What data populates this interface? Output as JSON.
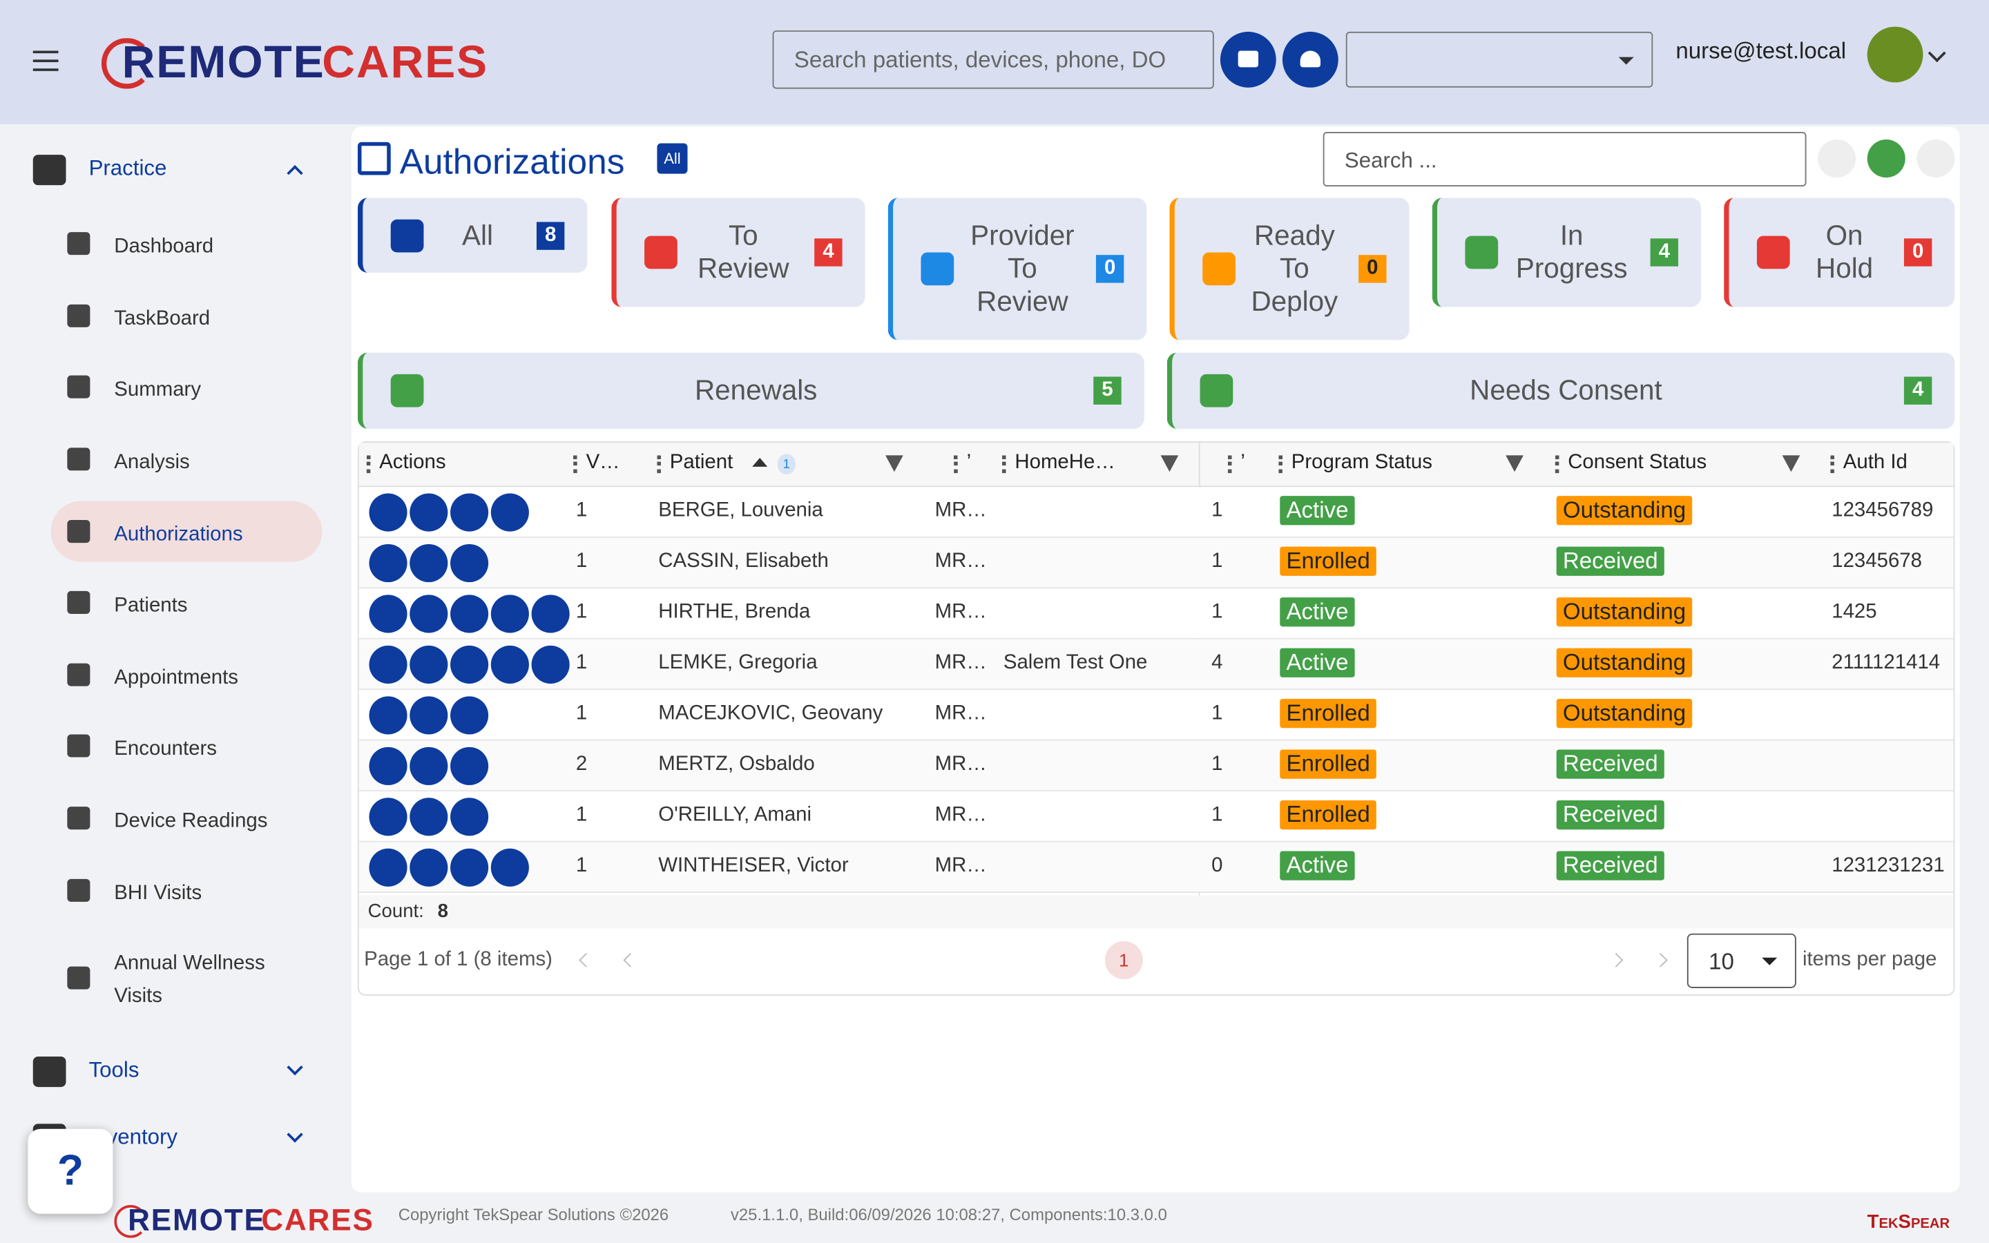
{
  "header": {
    "logo": {
      "left": "REMOTE",
      "right": "CARES"
    },
    "search_placeholder": "Search patients, devices, phone, DO",
    "user": "nurse@test.local"
  },
  "sidebar": {
    "groups": [
      {
        "label": "Practice",
        "items": [
          "Dashboard",
          "TaskBoard",
          "Summary",
          "Analysis",
          "Authorizations",
          "Patients",
          "Appointments",
          "Encounters",
          "Device Readings",
          "BHI Visits",
          "Annual Wellness Visits"
        ]
      },
      {
        "label": "Tools"
      },
      {
        "label": "Inventory"
      }
    ]
  },
  "help": "?",
  "page": {
    "title": "Authorizations",
    "title_badge": "All",
    "search_placeholder": "Search ...",
    "filters": [
      {
        "label": "All",
        "count": 8
      },
      {
        "label": "To Review",
        "count": 4
      },
      {
        "label": "Provider To Review",
        "count": 0
      },
      {
        "label": "Ready To Deploy",
        "count": 0
      },
      {
        "label": "In Progress",
        "count": 4
      },
      {
        "label": "On Hold",
        "count": 0
      }
    ],
    "wide_filters": [
      {
        "label": "Renewals",
        "count": 5
      },
      {
        "label": "Needs Consent",
        "count": 4
      }
    ]
  },
  "table": {
    "columns": [
      "Actions",
      "V…",
      "Patient",
      "’",
      "HomeHe…",
      "’",
      "Program Status",
      "Consent Status",
      "Auth Id"
    ],
    "sort_badge": 1,
    "rows": [
      {
        "v": 1,
        "patient": "BERGE, Louvenia",
        "mr": "MR…",
        "n": 1,
        "program": "Active",
        "consent": "Outstanding",
        "auth_id": "123456789"
      },
      {
        "v": 1,
        "patient": "CASSIN, Elisabeth",
        "mr": "MR…",
        "n": 1,
        "program": "Enrolled",
        "consent": "Received",
        "auth_id": "12345678"
      },
      {
        "v": 1,
        "patient": "HIRTHE, Brenda",
        "mr": "MR…",
        "n": 1,
        "program": "Active",
        "consent": "Outstanding",
        "auth_id": "1425"
      },
      {
        "v": 1,
        "patient": "LEMKE, Gregoria",
        "mr": "MR…",
        "home": "Salem Test One",
        "n": 4,
        "program": "Active",
        "consent": "Outstanding",
        "auth_id": "2111121414"
      },
      {
        "v": 1,
        "patient": "MACEJKOVIC, Geovany",
        "mr": "MR…",
        "n": 1,
        "program": "Enrolled",
        "consent": "Outstanding"
      },
      {
        "v": 2,
        "patient": "MERTZ, Osbaldo",
        "mr": "MR…",
        "n": 1,
        "program": "Enrolled",
        "consent": "Received"
      },
      {
        "v": 1,
        "patient": "O'REILLY, Amani",
        "mr": "MR…",
        "n": 1,
        "program": "Enrolled",
        "consent": "Received"
      },
      {
        "v": 1,
        "patient": "WINTHEISER, Victor",
        "mr": "MR…",
        "n": 0,
        "program": "Active",
        "consent": "Received",
        "auth_id": "1231231231"
      }
    ],
    "count_label": "Count:",
    "count": 8
  },
  "pager": {
    "summary": "Page 1 of 1 (8 items)",
    "page": 1,
    "page_size": 10,
    "page_size_label": "items per page"
  },
  "footer": {
    "logo": {
      "left": "REMOTE",
      "right": "CARES"
    },
    "copyright": "Copyright TekSpear Solutions ©2026",
    "build": "v25.1.1.0, Build:06/09/2026 10:08:27, Components:10.3.0.0",
    "brand": "TekSpear"
  }
}
